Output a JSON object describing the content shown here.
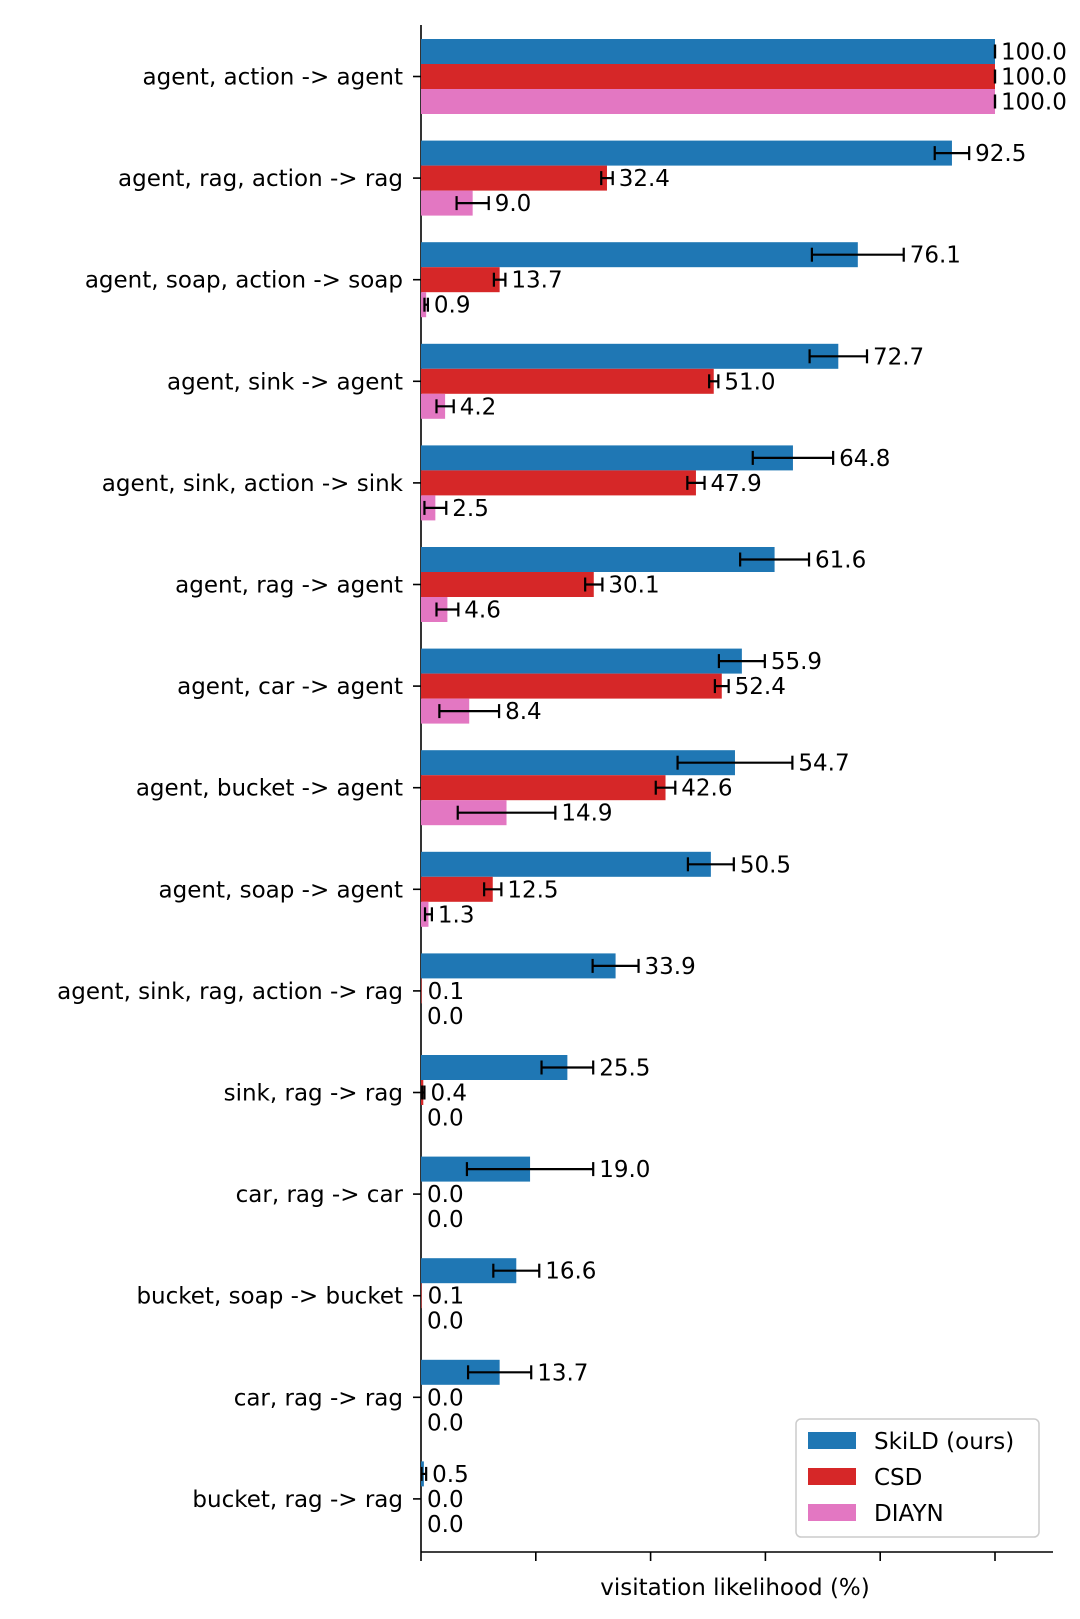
{
  "chart_data": {
    "type": "bar",
    "orientation": "horizontal",
    "xlabel": "visitation likelihood (%)",
    "xlim": [
      0,
      110
    ],
    "x_ticks": [
      0,
      20,
      40,
      60,
      80,
      100
    ],
    "categories": [
      "agent, action -> agent",
      "agent, rag, action -> rag",
      "agent, soap, action -> soap",
      "agent, sink -> agent",
      "agent, sink, action -> sink",
      "agent, rag -> agent",
      "agent, car -> agent",
      "agent, bucket -> agent",
      "agent, soap -> agent",
      "agent, sink, rag, action -> rag",
      "sink, rag -> rag",
      "car, rag -> car",
      "bucket, soap -> bucket",
      "car, rag -> rag",
      "bucket, rag -> rag"
    ],
    "series": [
      {
        "name": "SkiLD (ours)",
        "color": "#1f77b4",
        "values": [
          100.0,
          92.5,
          76.1,
          72.7,
          64.8,
          61.6,
          55.9,
          54.7,
          50.5,
          33.9,
          25.5,
          19.0,
          16.6,
          13.7,
          0.5
        ],
        "labels": [
          "100.0",
          "92.5",
          "76.1",
          "72.7",
          "64.8",
          "61.6",
          "55.9",
          "54.7",
          "50.5",
          "33.9",
          "25.5",
          "19.0",
          "16.6",
          "13.7",
          "0.5"
        ],
        "errors": [
          0,
          3,
          8,
          5,
          7,
          6,
          4,
          10,
          4,
          4,
          4.5,
          11,
          4,
          5.5,
          0.4
        ]
      },
      {
        "name": "CSD",
        "color": "#d62728",
        "values": [
          100.0,
          32.4,
          13.7,
          51.0,
          47.9,
          30.1,
          52.4,
          42.6,
          12.5,
          0.1,
          0.4,
          0.0,
          0.1,
          0.0,
          0.0
        ],
        "labels": [
          "100.0",
          "32.4",
          "13.7",
          "51.0",
          "47.9",
          "30.1",
          "52.4",
          "42.6",
          "12.5",
          "0.1",
          "0.4",
          "0.0",
          "0.1",
          "0.0",
          "0.0"
        ],
        "errors": [
          0,
          1,
          1,
          0.8,
          1.5,
          1.5,
          1.2,
          1.7,
          1.5,
          0,
          0.2,
          0,
          0,
          0,
          0
        ]
      },
      {
        "name": "DIAYN",
        "color": "#e377c2",
        "values": [
          100.0,
          9.0,
          0.9,
          4.2,
          2.5,
          4.6,
          8.4,
          14.9,
          1.3,
          0.0,
          0.0,
          0.0,
          0.0,
          0.0,
          0.0
        ],
        "labels": [
          "100.0",
          "9.0",
          "0.9",
          "4.2",
          "2.5",
          "4.6",
          "8.4",
          "14.9",
          "1.3",
          "0.0",
          "0.0",
          "0.0",
          "0.0",
          "0.0",
          "0.0"
        ],
        "errors": [
          0,
          2.8,
          0.3,
          1.5,
          1.9,
          1.9,
          5.2,
          8.5,
          0.6,
          0,
          0,
          0,
          0,
          0,
          0
        ]
      }
    ],
    "legend_position": "bottom-right"
  }
}
